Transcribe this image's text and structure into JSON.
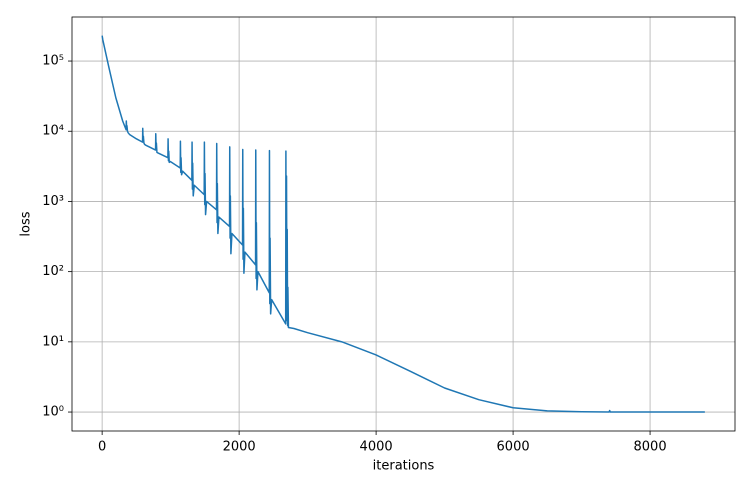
{
  "chart_data": {
    "type": "line",
    "xlabel": "iterations",
    "ylabel": "loss",
    "x": [
      0,
      10,
      100,
      200,
      300,
      350,
      353,
      358,
      362,
      370,
      380,
      400,
      500,
      590,
      593,
      598,
      602,
      610,
      620,
      640,
      700,
      780,
      783,
      788,
      792,
      800,
      815,
      960,
      963,
      968,
      972,
      980,
      995,
      1140,
      1143,
      1148,
      1152,
      1160,
      1175,
      1310,
      1313,
      1318,
      1322,
      1330,
      1345,
      1490,
      1493,
      1498,
      1502,
      1510,
      1525,
      1670,
      1673,
      1678,
      1682,
      1690,
      1705,
      1860,
      1863,
      1868,
      1872,
      1880,
      1895,
      2050,
      2053,
      2058,
      2062,
      2070,
      2085,
      2240,
      2243,
      2248,
      2252,
      2260,
      2275,
      2440,
      2443,
      2448,
      2452,
      2460,
      2475,
      2680,
      2683,
      2688,
      2692,
      2698,
      2702,
      2708,
      2712,
      2720,
      2800,
      3000,
      3500,
      4000,
      4500,
      5000,
      5500,
      6000,
      6500,
      7000,
      7400,
      7410,
      7420,
      8000,
      8800
    ],
    "series": [
      {
        "name": "loss",
        "color": "#1f77b4",
        "values": [
          230000,
          200000,
          80000,
          30000,
          14000,
          10500,
          14000,
          11000,
          12000,
          10000,
          9500,
          9000,
          7800,
          7000,
          11000,
          7500,
          8500,
          6800,
          6500,
          6300,
          5900,
          5400,
          9200,
          5500,
          6800,
          5000,
          4900,
          4200,
          7800,
          3800,
          5200,
          3600,
          3700,
          3000,
          7200,
          2600,
          4200,
          2400,
          2700,
          2000,
          7000,
          1500,
          3500,
          1200,
          1700,
          1250,
          7000,
          900,
          2500,
          650,
          1000,
          760,
          6700,
          500,
          1800,
          350,
          600,
          440,
          6000,
          300,
          1200,
          180,
          350,
          240,
          5500,
          150,
          800,
          95,
          190,
          125,
          5400,
          80,
          500,
          55,
          100,
          50,
          5300,
          35,
          300,
          25,
          40,
          18,
          5200,
          20,
          2300,
          30,
          400,
          17,
          60,
          16,
          15.5,
          13.5,
          10,
          6.5,
          3.8,
          2.2,
          1.5,
          1.15,
          1.04,
          1.01,
          1.0,
          1.05,
          1.0,
          1.0,
          1.0
        ]
      }
    ],
    "xlim": [
      -440,
      9240
    ],
    "xticks": [
      0,
      2000,
      4000,
      6000,
      8000
    ],
    "ylim": [
      0.537,
      424000
    ],
    "ylog": true,
    "yticks": [
      {
        "value": 1,
        "label": "10⁰"
      },
      {
        "value": 10,
        "label": "10¹"
      },
      {
        "value": 100,
        "label": "10²"
      },
      {
        "value": 1000,
        "label": "10³"
      },
      {
        "value": 10000,
        "label": "10⁴"
      },
      {
        "value": 100000,
        "label": "10⁵"
      }
    ],
    "grid": true
  }
}
